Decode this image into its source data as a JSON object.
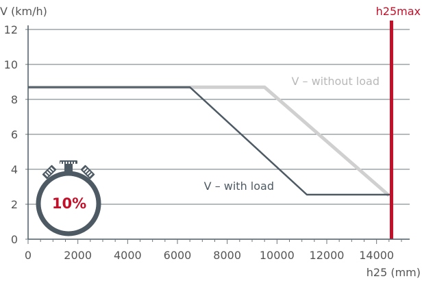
{
  "chart_data": {
    "type": "line",
    "xlabel": "h25 (mm)",
    "ylabel": "V (km/h)",
    "xlim": [
      0,
      15000
    ],
    "ylim": [
      0,
      12
    ],
    "x_ticks": [
      "0",
      "2000",
      "4000",
      "6000",
      "8000",
      "10000",
      "12000",
      "14000"
    ],
    "y_ticks": [
      "0",
      "2",
      "4",
      "6",
      "8",
      "10",
      "12"
    ],
    "grid": true,
    "series": [
      {
        "name": "V – without load",
        "color": "#d0d0d0",
        "x": [
          0,
          9500,
          14500
        ],
        "y": [
          8.7,
          8.7,
          2.5
        ]
      },
      {
        "name": "V – with load",
        "color": "#4d5a63",
        "x": [
          0,
          6500,
          11200,
          14600
        ],
        "y": [
          8.7,
          8.7,
          2.55,
          2.55
        ]
      }
    ],
    "threshold": {
      "label": "h25max",
      "x": 14600,
      "color": "#c0102a"
    },
    "badge": {
      "text": "10%",
      "icon": "stopwatch-icon",
      "color": "#c0102a"
    }
  }
}
